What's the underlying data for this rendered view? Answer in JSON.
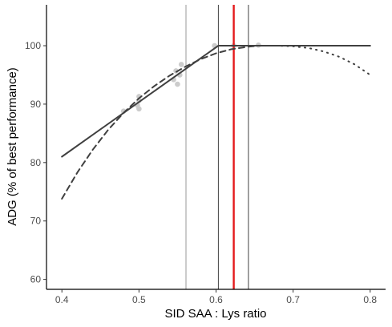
{
  "chart_data": {
    "type": "line",
    "title": "",
    "xlabel": "SID SAA : Lys ratio",
    "ylabel": "ADG (% of best performance)",
    "xlim": [
      0.38,
      0.82
    ],
    "ylim": [
      58.3,
      107.0
    ],
    "grid": false,
    "xticks": [
      0.4,
      0.5,
      0.6,
      0.7,
      0.8
    ],
    "yticks": [
      60,
      70,
      80,
      90,
      100
    ],
    "xtick_labels": [
      "0.4",
      "0.5",
      "0.6",
      "0.7",
      "0.8"
    ],
    "ytick_labels": [
      "60",
      "70",
      "80",
      "90",
      "100"
    ],
    "series": [
      {
        "style": "solid",
        "color": "#404040",
        "x": [
          0.4,
          0.603,
          0.8
        ],
        "y": [
          81.0,
          100.0,
          100.0
        ]
      },
      {
        "style": "dashed",
        "color": "#404040",
        "x": [
          0.4,
          0.42,
          0.44,
          0.46,
          0.48,
          0.5,
          0.52,
          0.54,
          0.56,
          0.58,
          0.6,
          0.62,
          0.64,
          0.655,
          0.68,
          0.72,
          0.76,
          0.8
        ],
        "y": [
          73.8,
          78.3,
          82.2,
          85.6,
          88.5,
          91.0,
          93.1,
          94.9,
          96.4,
          97.7,
          98.7,
          99.4,
          99.8,
          100.0,
          100.0,
          100.0,
          100.0,
          100.0
        ]
      },
      {
        "style": "dotted",
        "color": "#404040",
        "x": [
          0.655,
          0.68,
          0.7,
          0.72,
          0.74,
          0.76,
          0.78,
          0.8
        ],
        "y": [
          100.0,
          100.0,
          99.9,
          99.6,
          99.0,
          98.1,
          96.8,
          95.0
        ]
      }
    ],
    "points": {
      "color": "#cccccc",
      "x": [
        0.48,
        0.498,
        0.5,
        0.5,
        0.5,
        0.545,
        0.548,
        0.55,
        0.553,
        0.555,
        0.598,
        0.623,
        0.655
      ],
      "y": [
        88.8,
        89.8,
        90.6,
        91.3,
        89.2,
        94.2,
        95.7,
        93.4,
        95.0,
        96.8,
        100.0,
        100.0,
        100.1
      ]
    },
    "vlines": [
      {
        "x": 0.561,
        "color": "#808080",
        "width": 0.8
      },
      {
        "x": 0.603,
        "color": "#404040",
        "width": 1.0
      },
      {
        "x": 0.623,
        "color": "#e41a1c",
        "width": 2.4
      },
      {
        "x": 0.642,
        "color": "#404040",
        "width": 1.0
      }
    ]
  }
}
